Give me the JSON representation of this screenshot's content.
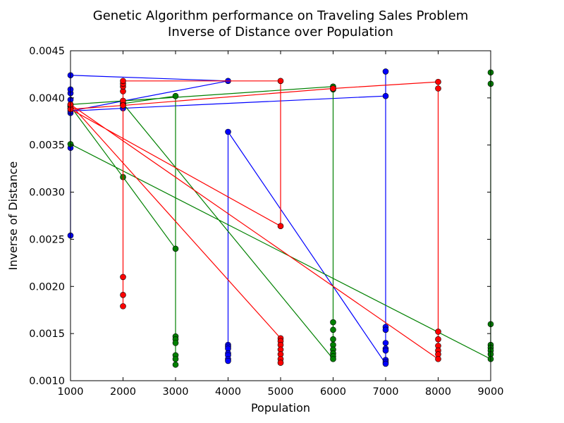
{
  "chart_data": {
    "type": "line",
    "title_line1": "Genetic Algorithm performance on Traveling Sales Problem",
    "title_line2": "Inverse of Distance over Population",
    "xlabel": "Population",
    "ylabel": "Inverse of Distance",
    "xlim": [
      1000,
      9000
    ],
    "ylim": [
      0.001,
      0.0045
    ],
    "x_ticks": [
      1000,
      2000,
      3000,
      4000,
      5000,
      6000,
      7000,
      8000,
      9000
    ],
    "x_tick_labels": [
      "1000",
      "2000",
      "3000",
      "4000",
      "5000",
      "6000",
      "7000",
      "8000",
      "9000"
    ],
    "y_ticks": [
      0.001,
      0.0015,
      0.002,
      0.0025,
      0.003,
      0.0035,
      0.004,
      0.0045
    ],
    "y_tick_labels": [
      "0.0010",
      "0.0015",
      "0.0020",
      "0.0025",
      "0.0030",
      "0.0035",
      "0.0040",
      "0.0045"
    ],
    "grid": false,
    "series": [
      {
        "name": "blue",
        "color": "#0000ff",
        "points": [
          [
            1000,
            0.00254
          ],
          [
            1000,
            0.00347
          ],
          [
            1000,
            0.00384
          ],
          [
            1000,
            0.00391
          ],
          [
            1000,
            0.00398
          ],
          [
            1000,
            0.00405
          ],
          [
            1000,
            0.00409
          ],
          [
            1000,
            0.00424
          ],
          [
            4000,
            0.00418
          ],
          [
            1000,
            0.00386
          ],
          [
            2000,
            0.00389
          ],
          [
            7000,
            0.00402
          ],
          [
            7000,
            0.00428
          ],
          [
            7000,
            0.00157
          ],
          [
            7000,
            0.00154
          ],
          [
            7000,
            0.0014
          ],
          [
            7000,
            0.00134
          ],
          [
            7000,
            0.00132
          ],
          [
            7000,
            0.00122
          ],
          [
            7000,
            0.0012
          ],
          [
            7000,
            0.00118
          ],
          [
            4000,
            0.00364
          ],
          [
            4000,
            0.00138
          ],
          [
            4000,
            0.00136
          ],
          [
            4000,
            0.00134
          ],
          [
            4000,
            0.00129
          ],
          [
            4000,
            0.00127
          ],
          [
            4000,
            0.00123
          ],
          [
            4000,
            0.00121
          ]
        ]
      },
      {
        "name": "green",
        "color": "#008000",
        "points": [
          [
            9000,
            0.00427
          ],
          [
            9000,
            0.00415
          ],
          [
            9000,
            0.0016
          ],
          [
            9000,
            0.00138
          ],
          [
            9000,
            0.00135
          ],
          [
            9000,
            0.00132
          ],
          [
            9000,
            0.00128
          ],
          [
            9000,
            0.00123
          ],
          [
            1000,
            0.00351
          ],
          [
            1000,
            0.00389
          ],
          [
            1000,
            0.00393
          ],
          [
            6000,
            0.00412
          ],
          [
            6000,
            0.00409
          ],
          [
            6000,
            0.00162
          ],
          [
            6000,
            0.00154
          ],
          [
            6000,
            0.00144
          ],
          [
            6000,
            0.00138
          ],
          [
            6000,
            0.00133
          ],
          [
            6000,
            0.00129
          ],
          [
            6000,
            0.00126
          ],
          [
            6000,
            0.00123
          ],
          [
            2000,
            0.00394
          ],
          [
            3000,
            0.00402
          ],
          [
            3000,
            0.00147
          ],
          [
            3000,
            0.00144
          ],
          [
            3000,
            0.0014
          ],
          [
            3000,
            0.00127
          ],
          [
            3000,
            0.00123
          ],
          [
            3000,
            0.00117
          ],
          [
            3000,
            0.0024
          ],
          [
            2000,
            0.00316
          ],
          [
            1000,
            0.00391
          ]
        ]
      },
      {
        "name": "red",
        "color": "#ff0000",
        "points": [
          [
            2000,
            0.00179
          ],
          [
            2000,
            0.00191
          ],
          [
            2000,
            0.0021
          ],
          [
            2000,
            0.00393
          ],
          [
            2000,
            0.00397
          ],
          [
            2000,
            0.00407
          ],
          [
            2000,
            0.00412
          ],
          [
            2000,
            0.00415
          ],
          [
            2000,
            0.00418
          ],
          [
            5000,
            0.00418
          ],
          [
            5000,
            0.00264
          ],
          [
            1000,
            0.00388
          ],
          [
            2000,
            0.00392
          ],
          [
            6000,
            0.0041
          ],
          [
            8000,
            0.00417
          ],
          [
            8000,
            0.0041
          ],
          [
            8000,
            0.00152
          ],
          [
            8000,
            0.00144
          ],
          [
            8000,
            0.00137
          ],
          [
            8000,
            0.00132
          ],
          [
            8000,
            0.00128
          ],
          [
            8000,
            0.00123
          ],
          [
            1000,
            0.00393
          ],
          [
            5000,
            0.00145
          ],
          [
            5000,
            0.00142
          ],
          [
            5000,
            0.00138
          ],
          [
            5000,
            0.00133
          ],
          [
            5000,
            0.00128
          ],
          [
            5000,
            0.00123
          ],
          [
            5000,
            0.00119
          ]
        ]
      }
    ]
  }
}
